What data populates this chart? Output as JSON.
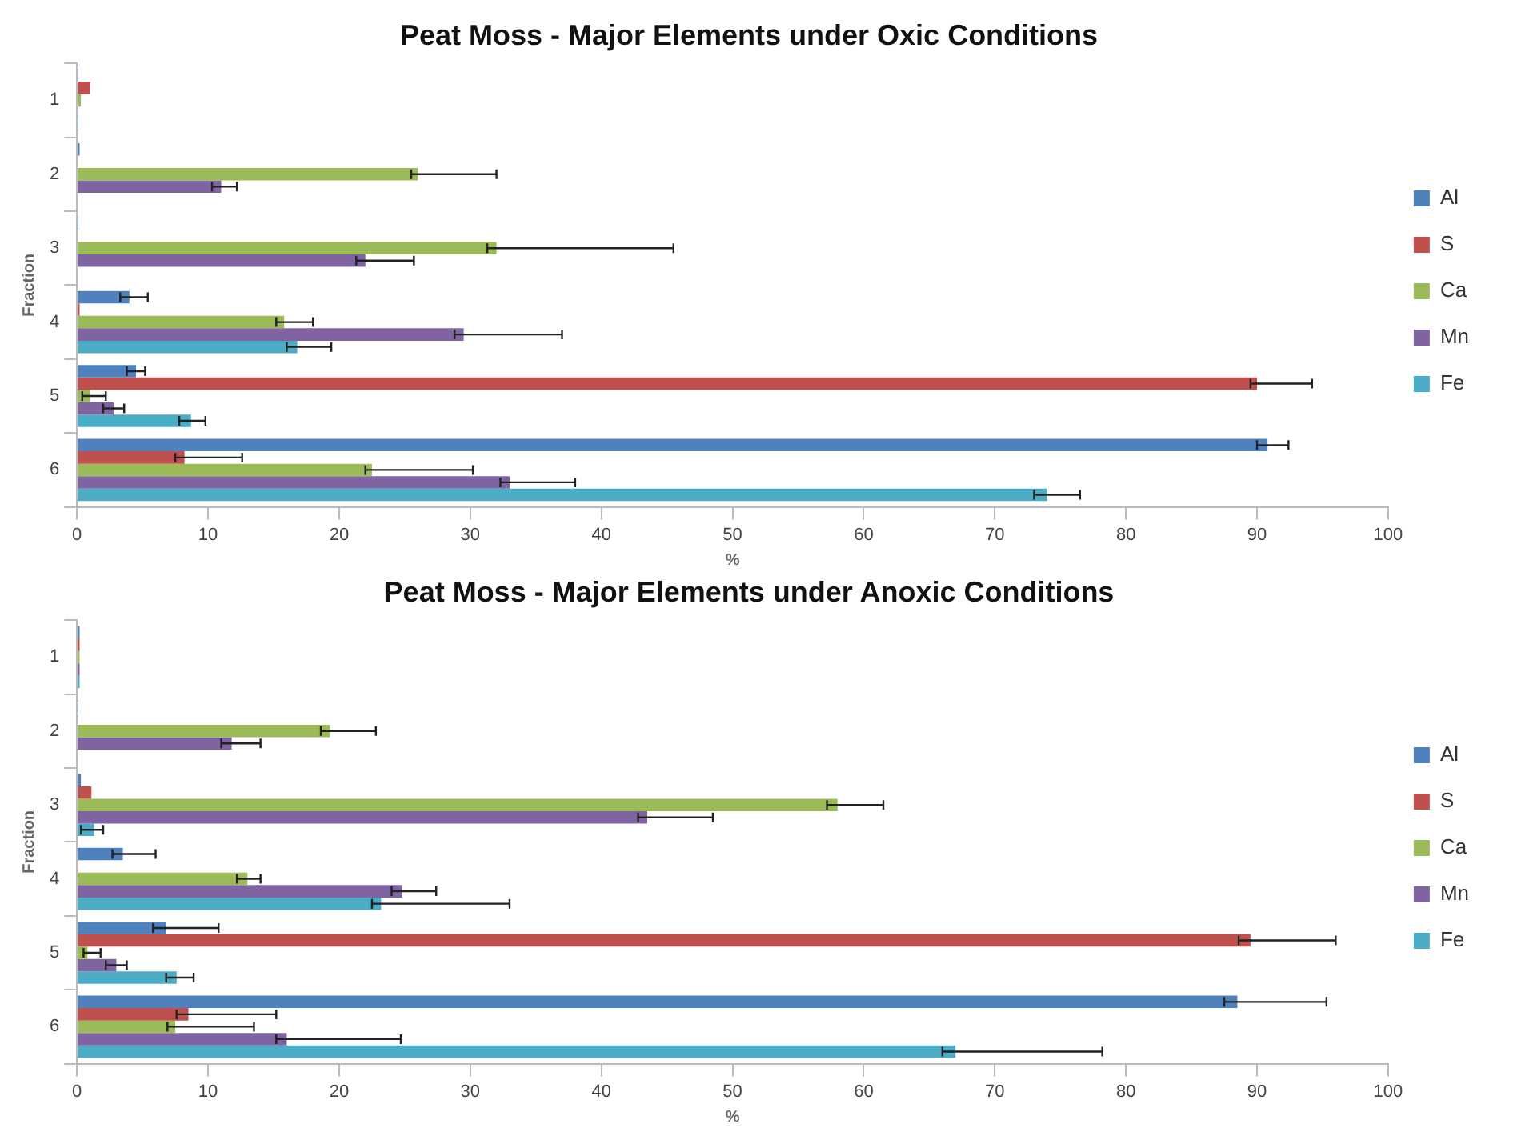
{
  "chart_data": [
    {
      "type": "bar",
      "orientation": "horizontal",
      "title": "Peat Moss - Major Elements under Oxic Conditions",
      "xlabel": "%",
      "ylabel": "Fraction",
      "categories": [
        "1",
        "2",
        "3",
        "4",
        "5",
        "6"
      ],
      "xlim": [
        0,
        100
      ],
      "xticks": [
        0,
        10,
        20,
        30,
        40,
        50,
        60,
        70,
        80,
        90,
        100
      ],
      "grid": false,
      "legend": "right",
      "series": [
        {
          "name": "Al",
          "color": "#4f81bd",
          "values": [
            0.1,
            0.2,
            0.1,
            4,
            4.5,
            90.8
          ],
          "errors": [
            null,
            null,
            null,
            [
              3.3,
              5.4
            ],
            [
              3.8,
              5.2
            ],
            [
              90,
              92.4
            ]
          ]
        },
        {
          "name": "S",
          "color": "#c0504d",
          "values": [
            1.0,
            0,
            0,
            0.2,
            90,
            8.2
          ],
          "errors": [
            null,
            null,
            null,
            null,
            [
              89.5,
              94.2
            ],
            [
              7.5,
              12.6
            ]
          ]
        },
        {
          "name": "Ca",
          "color": "#9bbb59",
          "values": [
            0.3,
            26,
            32,
            15.8,
            1,
            22.5
          ],
          "errors": [
            null,
            [
              25.5,
              32
            ],
            [
              31.3,
              45.5
            ],
            [
              15.2,
              18
            ],
            [
              0.4,
              2.2
            ],
            [
              22,
              30.2
            ]
          ]
        },
        {
          "name": "Mn",
          "color": "#8064a2",
          "values": [
            0.1,
            11,
            22,
            29.5,
            2.8,
            33
          ],
          "errors": [
            null,
            [
              10.3,
              12.2
            ],
            [
              21.3,
              25.7
            ],
            [
              28.8,
              37
            ],
            [
              2,
              3.6
            ],
            [
              32.3,
              38
            ]
          ]
        },
        {
          "name": "Fe",
          "color": "#4bacc6",
          "values": [
            0.1,
            0,
            0,
            16.8,
            8.7,
            74
          ],
          "errors": [
            null,
            null,
            null,
            [
              16,
              19.4
            ],
            [
              7.8,
              9.8
            ],
            [
              73,
              76.5
            ]
          ]
        }
      ]
    },
    {
      "type": "bar",
      "orientation": "horizontal",
      "title": "Peat Moss - Major Elements under Anoxic Conditions",
      "xlabel": "%",
      "ylabel": "Fraction",
      "categories": [
        "1",
        "2",
        "3",
        "4",
        "5",
        "6"
      ],
      "xlim": [
        0,
        100
      ],
      "xticks": [
        0,
        10,
        20,
        30,
        40,
        50,
        60,
        70,
        80,
        90,
        100
      ],
      "grid": false,
      "legend": "right",
      "series": [
        {
          "name": "Al",
          "color": "#4f81bd",
          "values": [
            0.2,
            0.1,
            0.3,
            3.5,
            6.8,
            88.5
          ],
          "errors": [
            null,
            null,
            null,
            [
              2.7,
              6
            ],
            [
              5.8,
              10.8
            ],
            [
              87.5,
              95.3
            ]
          ]
        },
        {
          "name": "S",
          "color": "#c0504d",
          "values": [
            0.2,
            0,
            1.1,
            0.1,
            89.5,
            8.5
          ],
          "errors": [
            null,
            null,
            null,
            null,
            [
              88.6,
              96
            ],
            [
              7.6,
              15.2
            ]
          ]
        },
        {
          "name": "Ca",
          "color": "#9bbb59",
          "values": [
            0.2,
            19.3,
            58,
            13,
            0.8,
            7.5
          ],
          "errors": [
            null,
            [
              18.6,
              22.8
            ],
            [
              57.2,
              61.5
            ],
            [
              12.2,
              14
            ],
            [
              0.5,
              1.8
            ],
            [
              6.9,
              13.5
            ]
          ]
        },
        {
          "name": "Mn",
          "color": "#8064a2",
          "values": [
            0.2,
            11.8,
            43.5,
            24.8,
            3,
            16
          ],
          "errors": [
            null,
            [
              11,
              14
            ],
            [
              42.8,
              48.5
            ],
            [
              24,
              27.4
            ],
            [
              2.2,
              3.8
            ],
            [
              15.2,
              24.7
            ]
          ]
        },
        {
          "name": "Fe",
          "color": "#4bacc6",
          "values": [
            0.2,
            0,
            1.3,
            23.2,
            7.6,
            67
          ],
          "errors": [
            null,
            null,
            [
              0.3,
              2
            ],
            [
              22.5,
              33
            ],
            [
              6.8,
              8.9
            ],
            [
              66,
              78.2
            ]
          ]
        }
      ]
    }
  ]
}
